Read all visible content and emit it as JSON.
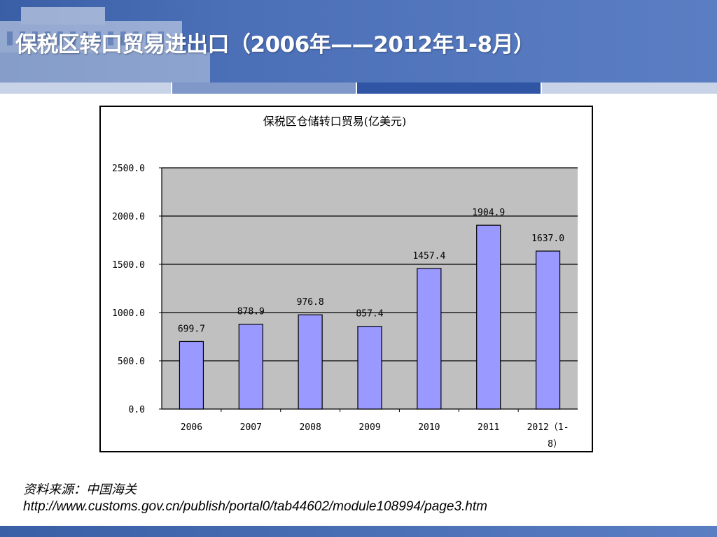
{
  "slide": {
    "title": "保税区转口贸易进出口（2006年——2012年1-8月）",
    "source_label": "资料来源：中国海关",
    "source_url": "http://www.customs.gov.cn/publish/portal0/tab44602/module108994/page3.htm"
  },
  "colors": {
    "header": "#4b6fb7",
    "tab_light": "#c9d3e8",
    "tab_mid": "#7f97c9",
    "tab_dark": "#2f55a4",
    "plot_background": "#c0c0c0",
    "bar_fill": "#9999ff"
  },
  "chart_data": {
    "type": "bar",
    "title": "保税区仓储转口贸易(亿美元)",
    "categories": [
      "2006",
      "2007",
      "2008",
      "2009",
      "2010",
      "2011",
      "2012（1-8）"
    ],
    "values": [
      699.7,
      878.9,
      976.8,
      857.4,
      1457.4,
      1904.9,
      1637.0
    ],
    "value_labels": [
      "699.7",
      "878.9",
      "976.8",
      "857.4",
      "1457.4",
      "1904.9",
      "1637.0"
    ],
    "y_ticks": [
      "0.0",
      "500.0",
      "1000.0",
      "1500.0",
      "2000.0",
      "2500.0"
    ],
    "ylim": [
      0,
      2500
    ],
    "grid": true,
    "legend": "none"
  }
}
